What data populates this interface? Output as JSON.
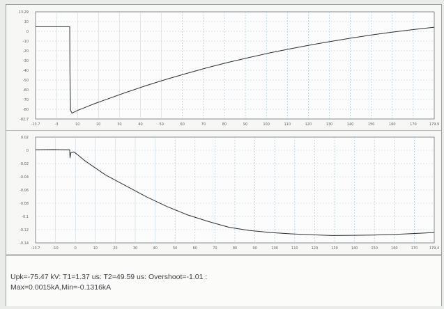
{
  "readout": {
    "line1": "Upk=-75.47 kV: T1=1.37 us: T2=49.59 us: Overshoot=-1.01 :",
    "line2": "Max=0.0015kA,Min=-0.1316kA"
  },
  "colors": {
    "trace": "#2b2e31",
    "grid_dash": "#9dc2dc",
    "grid_solid": "#c8d9e6",
    "axis": "#6a6e72"
  },
  "chart_data": [
    {
      "type": "line",
      "title": "",
      "xlabel": "",
      "ylabel": "",
      "xlim": [
        -13.7,
        179.9
      ],
      "ylim": [
        -82.7,
        13.29
      ],
      "grid": true,
      "x_ticks": [
        "-13.7",
        "-3",
        "10",
        "20",
        "30",
        "40",
        "50",
        "60",
        "70",
        "80",
        "90",
        "100",
        "110",
        "120",
        "130",
        "140",
        "150",
        "160",
        "170",
        "179.9"
      ],
      "y_ticks": [
        "13.29",
        "10",
        "0",
        "-10",
        "-20",
        "-30",
        "-40",
        "-50",
        "-60",
        "-70",
        "-80",
        "-82.7"
      ],
      "series": [
        {
          "x": [
            -13.7,
            -5,
            0,
            2.9,
            3.0,
            3.3,
            4,
            5,
            7,
            10,
            15,
            20,
            30,
            40,
            50,
            60,
            70,
            80,
            90,
            100,
            110,
            120,
            130,
            140,
            150,
            160,
            170,
            179.9
          ],
          "y": [
            0,
            0,
            0,
            0,
            -40,
            -75,
            -77.5,
            -76.5,
            -74.8,
            -72.6,
            -68.9,
            -65.6,
            -59,
            -52.8,
            -47,
            -41.7,
            -36.6,
            -31.9,
            -27.6,
            -23.5,
            -19.8,
            -16.3,
            -13.1,
            -10.1,
            -7.3,
            -4.8,
            -2.5,
            -0.5
          ]
        }
      ]
    },
    {
      "type": "line",
      "title": "",
      "xlabel": "",
      "ylabel": "",
      "xlim": [
        -13.7,
        179.4
      ],
      "ylim": [
        -0.143,
        0.02
      ],
      "grid": true,
      "x_ticks": [
        "-13.7",
        "-10",
        "0",
        "10",
        "20",
        "30",
        "40",
        "50",
        "60",
        "70",
        "80",
        "90",
        "100",
        "110",
        "120",
        "130",
        "140",
        "150",
        "160",
        "170",
        "179.4"
      ],
      "y_ticks": [
        "0.02",
        "0",
        "-0.02",
        "-0.04",
        "-0.06",
        "-0.08",
        "-0.1",
        "-0.12",
        "-0.14"
      ],
      "series": [
        {
          "x": [
            -13.7,
            -5,
            0,
            2.8,
            3.0,
            3.4,
            5,
            7,
            10,
            15,
            20,
            30,
            40,
            50,
            60,
            70,
            80,
            90,
            100,
            110,
            120,
            130,
            140,
            150,
            160,
            170,
            179.4
          ],
          "y": [
            0.0005,
            0.0008,
            0.0005,
            0.0006,
            -0.012,
            -0.004,
            -0.003,
            -0.008,
            -0.016,
            -0.027,
            -0.038,
            -0.055,
            -0.072,
            -0.087,
            -0.1,
            -0.11,
            -0.119,
            -0.124,
            -0.127,
            -0.129,
            -0.1305,
            -0.1316,
            -0.1313,
            -0.131,
            -0.13,
            -0.1285,
            -0.127
          ]
        }
      ]
    }
  ]
}
